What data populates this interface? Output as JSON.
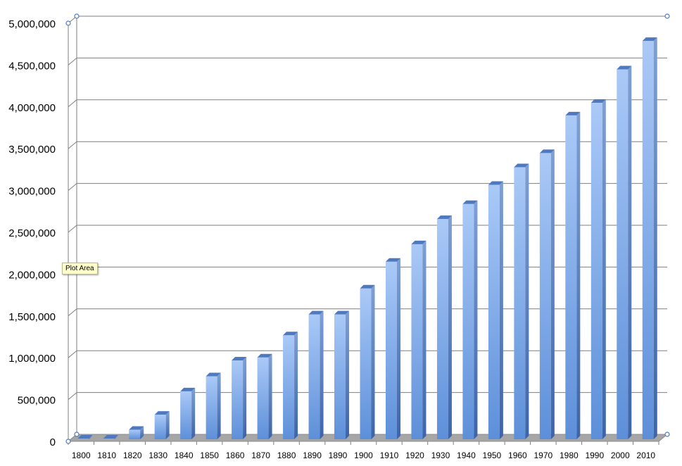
{
  "chart_data": {
    "type": "bar",
    "style": "3d-column",
    "categories": [
      "1800",
      "1810",
      "1820",
      "1830",
      "1840",
      "1850",
      "1860",
      "1870",
      "1880",
      "1890",
      "1890",
      "1900",
      "1910",
      "1920",
      "1930",
      "1940",
      "1950",
      "1960",
      "1970",
      "1980",
      "1990",
      "2000",
      "2010"
    ],
    "series": [
      {
        "values": [
          2000,
          5000,
          130000,
          310000,
          590000,
          770000,
          960000,
          995000,
          1260000,
          1510000,
          1510000,
          1820000,
          2140000,
          2350000,
          2650000,
          2830000,
          3060000,
          3270000,
          3440000,
          3890000,
          4040000,
          4440000,
          4780000
        ]
      }
    ],
    "y_ticks": [
      "0",
      "500,000",
      "1,000,000",
      "1,500,000",
      "2,000,000",
      "2,500,000",
      "3,000,000",
      "3,500,000",
      "4,000,000",
      "4,500,000",
      "5,000,000"
    ],
    "ylim": [
      0,
      5000000
    ],
    "grid": true,
    "legend": "none",
    "colors": {
      "bar_front": "#7fa8e8",
      "bar_top": "#9dbdf0",
      "bar_side": "#4f79bf",
      "grid": "#7f7f7f",
      "floor": "#a6a6a6",
      "handle": "#4f79bf"
    }
  },
  "tooltip": {
    "text": "Plot Area"
  }
}
